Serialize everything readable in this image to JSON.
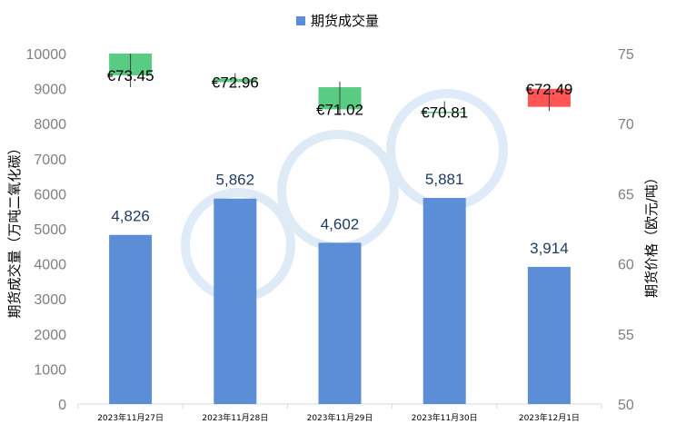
{
  "legend": {
    "label": "期货成交量"
  },
  "colors": {
    "bar": "#5b8ed6",
    "up": "#59cc84",
    "down": "#ff5555",
    "axis": "#d9d9d9",
    "tick_text": "#7f7f7f",
    "bar_label": "#1f3b63",
    "watermark": "#dbe9f7"
  },
  "chart_data": {
    "type": "bar",
    "categories": [
      "2023年11月27日",
      "2023年11月28日",
      "2023年11月29日",
      "2023年11月30日",
      "2023年12月1日"
    ],
    "series": [
      {
        "name": "期货成交量",
        "type": "bar",
        "axis": "left",
        "values": [
          4826,
          5862,
          4602,
          5881,
          3914
        ],
        "labels": [
          "4,826",
          "5,862",
          "4,602",
          "5,881",
          "3,914"
        ]
      }
    ],
    "price_candles": [
      {
        "open": 73.45,
        "close": 75.0,
        "high": 75.0,
        "low": 72.6,
        "direction": "up",
        "label": "€73.45"
      },
      {
        "open": 72.96,
        "close": 73.2,
        "high": 73.6,
        "low": 72.6,
        "direction": "up",
        "label": "€72.96"
      },
      {
        "open": 71.02,
        "close": 72.6,
        "high": 73.0,
        "low": 70.6,
        "direction": "up",
        "label": "€71.02"
      },
      {
        "open": 70.81,
        "close": 70.85,
        "high": 71.6,
        "low": 70.75,
        "direction": "up",
        "label": "€70.81"
      },
      {
        "open": 72.49,
        "close": 71.2,
        "high": 72.8,
        "low": 70.9,
        "direction": "down",
        "label": "€72.49"
      }
    ],
    "y_left": {
      "label": "期货成交量（万吨二氧化碳）",
      "min": 0,
      "max": 10000,
      "step": 1000,
      "ticks": [
        "0",
        "1000",
        "2000",
        "3000",
        "4000",
        "5000",
        "6000",
        "7000",
        "8000",
        "9000",
        "10000"
      ]
    },
    "y_right": {
      "label": "期货价格（欧元/吨）",
      "min": 50,
      "max": 75,
      "step": 5,
      "ticks": [
        "50",
        "55",
        "60",
        "65",
        "70",
        "75"
      ]
    },
    "grid": false,
    "legend_position": "top"
  }
}
